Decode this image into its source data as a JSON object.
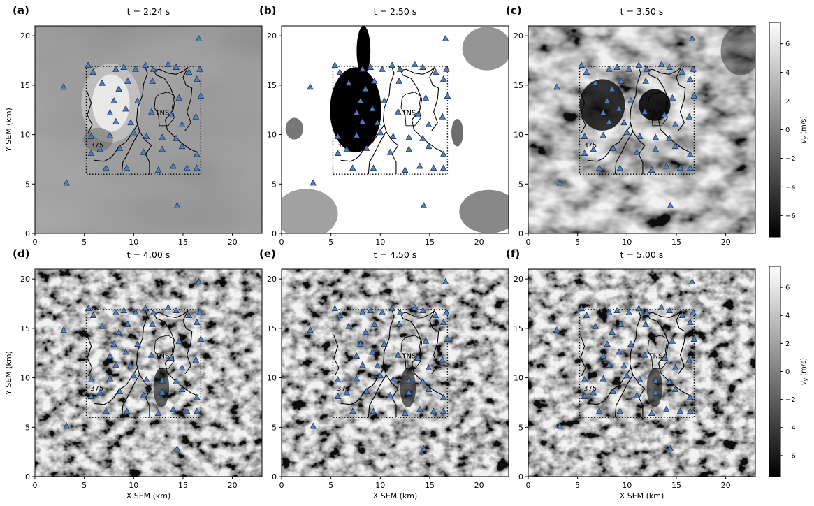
{
  "figure": {
    "panels": [
      {
        "letter": "(a)",
        "title": "t = 2.24 s",
        "field_state": "early"
      },
      {
        "letter": "(b)",
        "title": "t = 2.50 s",
        "field_state": "saturated"
      },
      {
        "letter": "(c)",
        "title": "t = 3.50 s",
        "field_state": "mixed"
      },
      {
        "letter": "(d)",
        "title": "t = 4.00 s",
        "field_state": "scattered"
      },
      {
        "letter": "(e)",
        "title": "t = 4.50 s",
        "field_state": "scattered"
      },
      {
        "letter": "(f)",
        "title": "t = 5.00 s",
        "field_state": "scattered"
      }
    ],
    "x_axis": {
      "label": "X SEM (km)",
      "ticks": [
        0,
        5,
        10,
        15,
        20
      ],
      "range": [
        0,
        23
      ]
    },
    "y_axis": {
      "label": "Y SEM (km)",
      "ticks": [
        0,
        5,
        10,
        15,
        20
      ],
      "range": [
        0,
        21
      ]
    },
    "colorbar": {
      "label": "v_y (m/s)",
      "label_main": "v",
      "label_sub": "y",
      "label_units": " (m/s)",
      "ticks": [
        6,
        4,
        2,
        0,
        -2,
        -4,
        -6
      ],
      "range": [
        -7.5,
        7.5
      ],
      "colors": {
        "low": "#000000",
        "high": "#ffffff"
      }
    },
    "annotations": {
      "region_label": "TNS",
      "contour_label": "375"
    },
    "study_box": {
      "x": [
        5.2,
        16.8
      ],
      "y": [
        6.0,
        16.9
      ]
    },
    "station_color": "#4f7fbf",
    "stations": [
      [
        5.4,
        17.0
      ],
      [
        5.9,
        16.3
      ],
      [
        8.2,
        16.6
      ],
      [
        9.0,
        16.8
      ],
      [
        10.2,
        16.6
      ],
      [
        11.2,
        17.0
      ],
      [
        12.0,
        16.6
      ],
      [
        13.5,
        17.1
      ],
      [
        14.3,
        16.8
      ],
      [
        15.6,
        16.3
      ],
      [
        16.7,
        16.6
      ],
      [
        6.8,
        15.2
      ],
      [
        8.5,
        14.6
      ],
      [
        9.4,
        15.4
      ],
      [
        11.9,
        15.4
      ],
      [
        16.4,
        15.6
      ],
      [
        8.0,
        13.4
      ],
      [
        10.4,
        13.4
      ],
      [
        14.6,
        13.7
      ],
      [
        16.8,
        13.9
      ],
      [
        7.6,
        12.2
      ],
      [
        9.2,
        12.6
      ],
      [
        11.8,
        12.3
      ],
      [
        13.8,
        12.0
      ],
      [
        8.2,
        11.3
      ],
      [
        9.7,
        11.2
      ],
      [
        14.9,
        11.0
      ],
      [
        16.3,
        11.8
      ],
      [
        5.7,
        9.8
      ],
      [
        7.6,
        9.9
      ],
      [
        10.0,
        10.2
      ],
      [
        11.3,
        9.8
      ],
      [
        12.9,
        9.7
      ],
      [
        14.3,
        9.6
      ],
      [
        6.6,
        8.5
      ],
      [
        8.6,
        8.6
      ],
      [
        11.0,
        8.2
      ],
      [
        12.9,
        8.5
      ],
      [
        14.9,
        8.8
      ],
      [
        5.7,
        8.1
      ],
      [
        16.4,
        8.0
      ],
      [
        7.2,
        6.6
      ],
      [
        9.3,
        6.6
      ],
      [
        12.5,
        6.4
      ],
      [
        14.0,
        6.8
      ],
      [
        15.4,
        6.6
      ],
      [
        16.4,
        6.6
      ],
      [
        14.4,
        2.8
      ],
      [
        3.2,
        5.1
      ],
      [
        2.9,
        14.8
      ],
      [
        16.6,
        19.7
      ]
    ]
  }
}
